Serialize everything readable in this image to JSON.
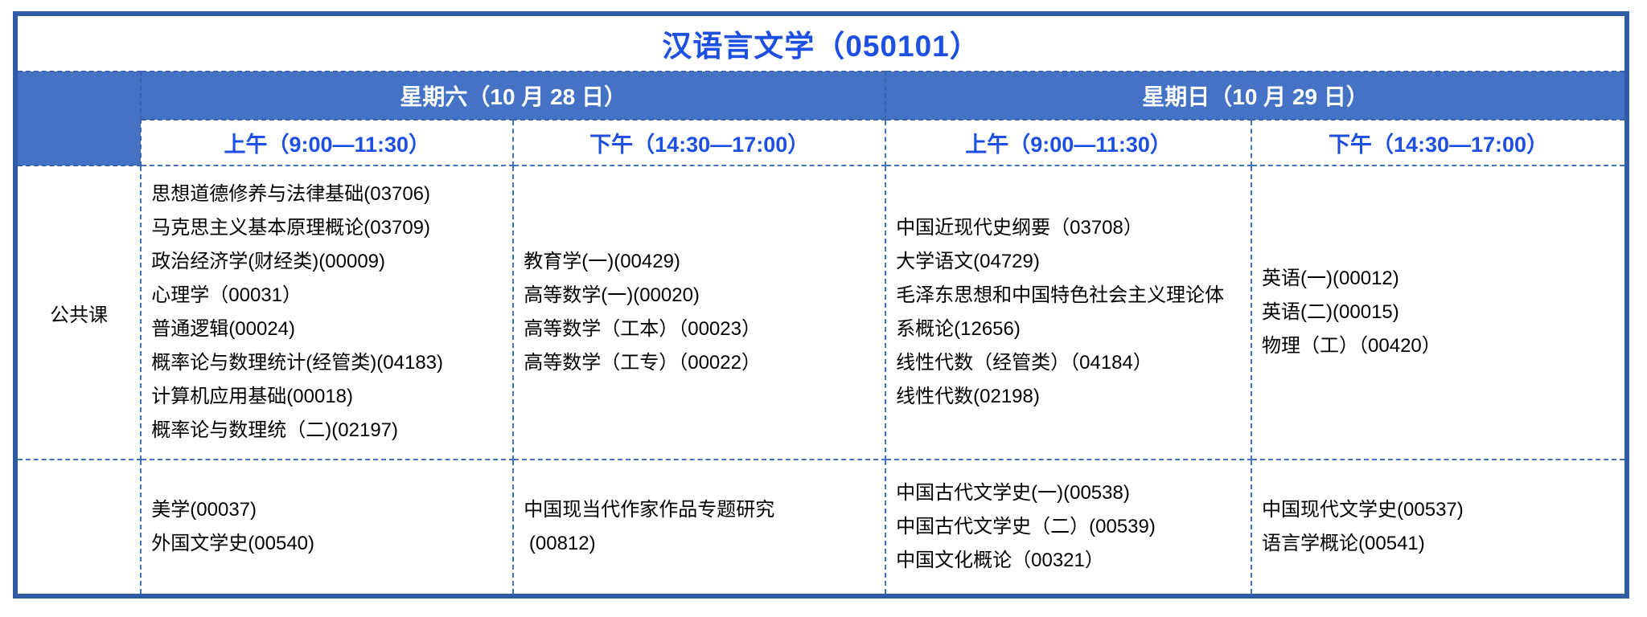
{
  "title": "汉语言文学（050101）",
  "colors": {
    "band_blue": "#4472c4",
    "outer_border_blue": "#2f5ba7",
    "grid_dash_blue": "#4273c4",
    "accent_text_blue": "#1d4fe1",
    "day_text": "#ffffff",
    "body_text": "#000000"
  },
  "header": {
    "days": [
      {
        "label": "星期六（10 月 28 日）"
      },
      {
        "label": "星期日（10 月 29 日）"
      }
    ],
    "times": [
      "上午（9:00—11:30）",
      "下午（14:30—17:00）",
      "上午（9:00—11:30）",
      "下午（14:30—17:00）"
    ]
  },
  "body": {
    "rows": [
      {
        "label": "公共课",
        "cells": [
          {
            "courses": [
              "思想道德修养与法律基础(03706)",
              "马克思主义基本原理概论(03709)",
              "政治经济学(财经类)(00009)",
              "心理学（00031）",
              "普通逻辑(00024)",
              "概率论与数理统计(经管类)(04183)",
              "计算机应用基础(00018)",
              "概率论与数理统（二)(02197)"
            ]
          },
          {
            "courses": [
              "教育学(一)(00429)",
              "高等数学(一)(00020)",
              "高等数学（工本）（00023）",
              "高等数学（工专）（00022）"
            ]
          },
          {
            "courses": [
              "中国近现代史纲要（03708）",
              "大学语文(04729)",
              "毛泽东思想和中国特色社会主义理论体",
              "系概论(12656)",
              "线性代数（经管类）（04184）",
              "线性代数(02198)"
            ]
          },
          {
            "courses": [
              "英语(一)(00012)",
              "英语(二)(00015)",
              "物理（工）（00420）"
            ]
          }
        ]
      },
      {
        "label": "",
        "cells": [
          {
            "courses": [
              "美学(00037)",
              "外国文学史(00540)"
            ]
          },
          {
            "courses": [
              "中国现当代作家作品专题研究",
              " (00812)"
            ]
          },
          {
            "courses": [
              "中国古代文学史(一)(00538)",
              "中国古代文学史（二）(00539)",
              "中国文化概论（00321）"
            ]
          },
          {
            "courses": [
              "中国现代文学史(00537)",
              "语言学概论(00541)"
            ]
          }
        ]
      }
    ]
  }
}
